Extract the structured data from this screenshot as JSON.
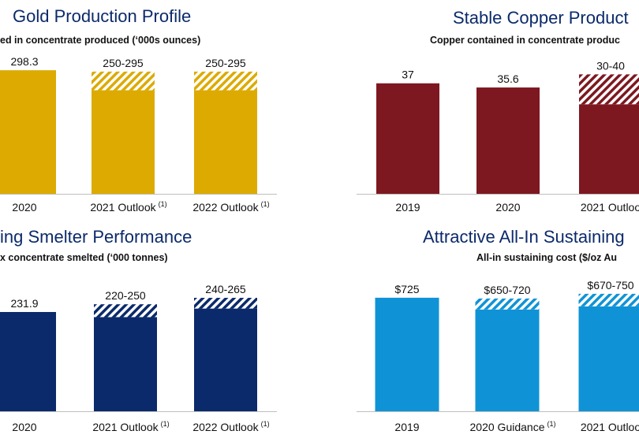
{
  "chart_data": [
    {
      "type": "bar",
      "title": "Gold Production Profile",
      "subtitle": "ed in concentrate produced (‘000s ounces)",
      "categories": [
        "2020",
        "2021 Outlook",
        "2022 Outlook"
      ],
      "footnotes": [
        "",
        "(1)",
        "(1)"
      ],
      "series": [
        {
          "values": [
            298.3,
            250,
            250
          ],
          "range_high": [
            null,
            295,
            295
          ]
        }
      ],
      "data_labels": [
        "298.3",
        "250-295",
        "250-295"
      ],
      "color": "#dcaa00",
      "ylim": [
        0,
        310
      ]
    },
    {
      "type": "bar",
      "title": "Stable Copper Product",
      "subtitle": "Copper contained in concentrate produc",
      "categories": [
        "2019",
        "2020",
        "2021 Outloo"
      ],
      "footnotes": [
        "",
        "",
        ""
      ],
      "series": [
        {
          "values": [
            37,
            35.6,
            30
          ],
          "range_high": [
            null,
            null,
            40
          ]
        }
      ],
      "data_labels": [
        "37",
        "35.6",
        "30-40"
      ],
      "color": "#7d1820",
      "ylim": [
        0,
        43
      ]
    },
    {
      "type": "bar",
      "title": "ing Smelter Performance",
      "subtitle": "x concentrate smelted (‘000 tonnes)",
      "categories": [
        "2020",
        "2021 Outlook",
        "2022 Outlook"
      ],
      "footnotes": [
        "",
        "(1)",
        "(1)"
      ],
      "series": [
        {
          "values": [
            231.9,
            220,
            240
          ],
          "range_high": [
            null,
            250,
            265
          ]
        }
      ],
      "data_labels": [
        "231.9",
        "220-250",
        "240-265"
      ],
      "color": "#0b2a6b",
      "ylim": [
        0,
        300
      ]
    },
    {
      "type": "bar",
      "title": "Attractive All-In Sustaining",
      "subtitle": "All-in sustaining cost ($/oz Au",
      "categories": [
        "2019",
        "2020 Guidance",
        "2021 Outloo"
      ],
      "footnotes": [
        "",
        "(1)",
        ""
      ],
      "series": [
        {
          "values": [
            725,
            650,
            670
          ],
          "range_high": [
            null,
            720,
            750
          ]
        }
      ],
      "data_labels": [
        "$725",
        "$650-720",
        "$670-750"
      ],
      "color": "#0f93d6",
      "ylim": [
        0,
        820
      ]
    }
  ]
}
